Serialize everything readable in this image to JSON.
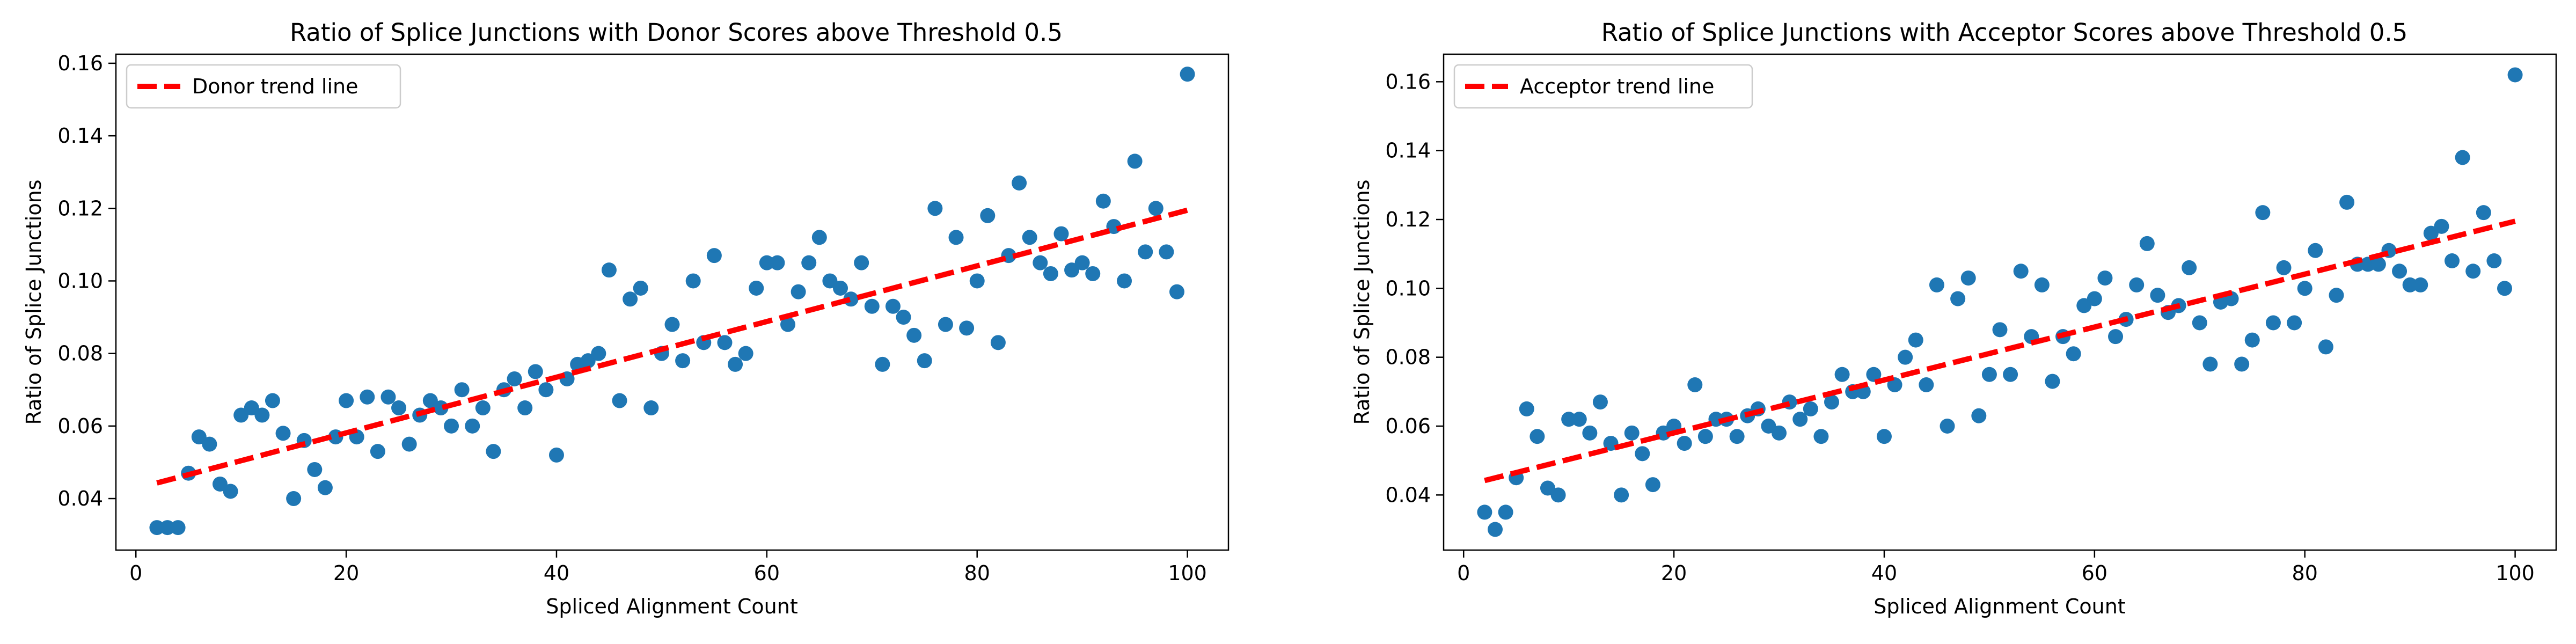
{
  "chart_data": [
    {
      "type": "scatter",
      "title": "Ratio of Splice Junctions with Donor Scores above Threshold 0.5",
      "xlabel": "Spliced Alignment Count",
      "ylabel": "Ratio of Splice Junctions",
      "xlim": [
        -1.9,
        103.9
      ],
      "ylim": [
        0.0258,
        0.1625
      ],
      "xticks": [
        0,
        20,
        40,
        60,
        80,
        100
      ],
      "yticks": [
        0.04,
        0.06,
        0.08,
        0.1,
        0.12,
        0.14,
        0.16
      ],
      "point_color": "#1f77b4",
      "legend": {
        "position": "top-left",
        "label": "Donor trend line"
      },
      "trend_line": {
        "color": "#ff0000",
        "style": "dashed",
        "x": [
          2,
          100
        ],
        "y": [
          0.0443,
          0.1195
        ]
      },
      "x": [
        2,
        3,
        4,
        5,
        6,
        7,
        8,
        9,
        10,
        11,
        12,
        13,
        14,
        15,
        16,
        17,
        18,
        19,
        20,
        21,
        22,
        23,
        24,
        25,
        26,
        27,
        28,
        29,
        30,
        31,
        32,
        33,
        34,
        35,
        36,
        37,
        38,
        39,
        40,
        41,
        42,
        43,
        44,
        45,
        46,
        47,
        48,
        49,
        50,
        51,
        52,
        53,
        54,
        55,
        56,
        57,
        58,
        59,
        60,
        61,
        62,
        63,
        64,
        65,
        66,
        67,
        68,
        69,
        70,
        71,
        72,
        73,
        74,
        75,
        76,
        77,
        78,
        79,
        80,
        81,
        82,
        83,
        84,
        85,
        86,
        87,
        88,
        89,
        90,
        91,
        92,
        93,
        94,
        95,
        96,
        97,
        98,
        99,
        100
      ],
      "y": [
        0.032,
        0.032,
        0.032,
        0.047,
        0.057,
        0.055,
        0.044,
        0.042,
        0.063,
        0.065,
        0.063,
        0.067,
        0.058,
        0.04,
        0.056,
        0.048,
        0.043,
        0.057,
        0.067,
        0.057,
        0.068,
        0.053,
        0.068,
        0.065,
        0.055,
        0.063,
        0.067,
        0.065,
        0.06,
        0.07,
        0.06,
        0.065,
        0.053,
        0.07,
        0.073,
        0.065,
        0.075,
        0.07,
        0.052,
        0.073,
        0.077,
        0.078,
        0.08,
        0.103,
        0.067,
        0.095,
        0.098,
        0.065,
        0.08,
        0.088,
        0.078,
        0.1,
        0.083,
        0.107,
        0.083,
        0.077,
        0.08,
        0.098,
        0.105,
        0.105,
        0.088,
        0.097,
        0.105,
        0.112,
        0.1,
        0.098,
        0.095,
        0.105,
        0.093,
        0.077,
        0.093,
        0.09,
        0.085,
        0.078,
        0.12,
        0.088,
        0.112,
        0.087,
        0.1,
        0.118,
        0.083,
        0.107,
        0.127,
        0.112,
        0.105,
        0.102,
        0.113,
        0.103,
        0.105,
        0.102,
        0.122,
        0.115,
        0.1,
        0.133,
        0.108,
        0.12,
        0.108,
        0.097,
        0.157
      ]
    },
    {
      "type": "scatter",
      "title": "Ratio of Splice Junctions with Acceptor Scores above Threshold 0.5",
      "xlabel": "Spliced Alignment Count",
      "ylabel": "Ratio of Splice Junctions",
      "xlim": [
        -1.9,
        103.9
      ],
      "ylim": [
        0.024,
        0.168
      ],
      "xticks": [
        0,
        20,
        40,
        60,
        80,
        100
      ],
      "yticks": [
        0.04,
        0.06,
        0.08,
        0.1,
        0.12,
        0.14,
        0.16
      ],
      "point_color": "#1f77b4",
      "legend": {
        "position": "top-left",
        "label": "Acceptor trend line"
      },
      "trend_line": {
        "color": "#ff0000",
        "style": "dashed",
        "x": [
          2,
          100
        ],
        "y": [
          0.0442,
          0.1195
        ]
      },
      "x": [
        2,
        3,
        4,
        5,
        6,
        7,
        8,
        9,
        10,
        11,
        12,
        13,
        14,
        15,
        16,
        17,
        18,
        19,
        20,
        21,
        22,
        23,
        24,
        25,
        26,
        27,
        28,
        29,
        30,
        31,
        32,
        33,
        34,
        35,
        36,
        37,
        38,
        39,
        40,
        41,
        42,
        43,
        44,
        45,
        46,
        47,
        48,
        49,
        50,
        51,
        52,
        53,
        54,
        55,
        56,
        57,
        58,
        59,
        60,
        61,
        62,
        63,
        64,
        65,
        66,
        67,
        68,
        69,
        70,
        71,
        72,
        73,
        74,
        75,
        76,
        77,
        78,
        79,
        80,
        81,
        82,
        83,
        84,
        85,
        86,
        87,
        88,
        89,
        90,
        91,
        92,
        93,
        94,
        95,
        96,
        97,
        98,
        99,
        100
      ],
      "y": [
        0.035,
        0.03,
        0.035,
        0.045,
        0.065,
        0.057,
        0.042,
        0.04,
        0.062,
        0.062,
        0.058,
        0.067,
        0.055,
        0.04,
        0.058,
        0.052,
        0.043,
        0.058,
        0.06,
        0.055,
        0.072,
        0.057,
        0.062,
        0.062,
        0.057,
        0.063,
        0.065,
        0.06,
        0.058,
        0.067,
        0.062,
        0.065,
        0.057,
        0.067,
        0.075,
        0.07,
        0.07,
        0.075,
        0.057,
        0.072,
        0.08,
        0.085,
        0.072,
        0.101,
        0.06,
        0.097,
        0.103,
        0.063,
        0.075,
        0.088,
        0.075,
        0.105,
        0.086,
        0.101,
        0.073,
        0.086,
        0.081,
        0.095,
        0.097,
        0.103,
        0.086,
        0.091,
        0.101,
        0.113,
        0.098,
        0.093,
        0.095,
        0.106,
        0.09,
        0.078,
        0.096,
        0.097,
        0.078,
        0.085,
        0.122,
        0.09,
        0.106,
        0.09,
        0.1,
        0.111,
        0.083,
        0.098,
        0.125,
        0.107,
        0.107,
        0.107,
        0.111,
        0.105,
        0.101,
        0.101,
        0.116,
        0.118,
        0.108,
        0.138,
        0.105,
        0.122,
        0.108,
        0.1,
        0.162
      ]
    }
  ]
}
